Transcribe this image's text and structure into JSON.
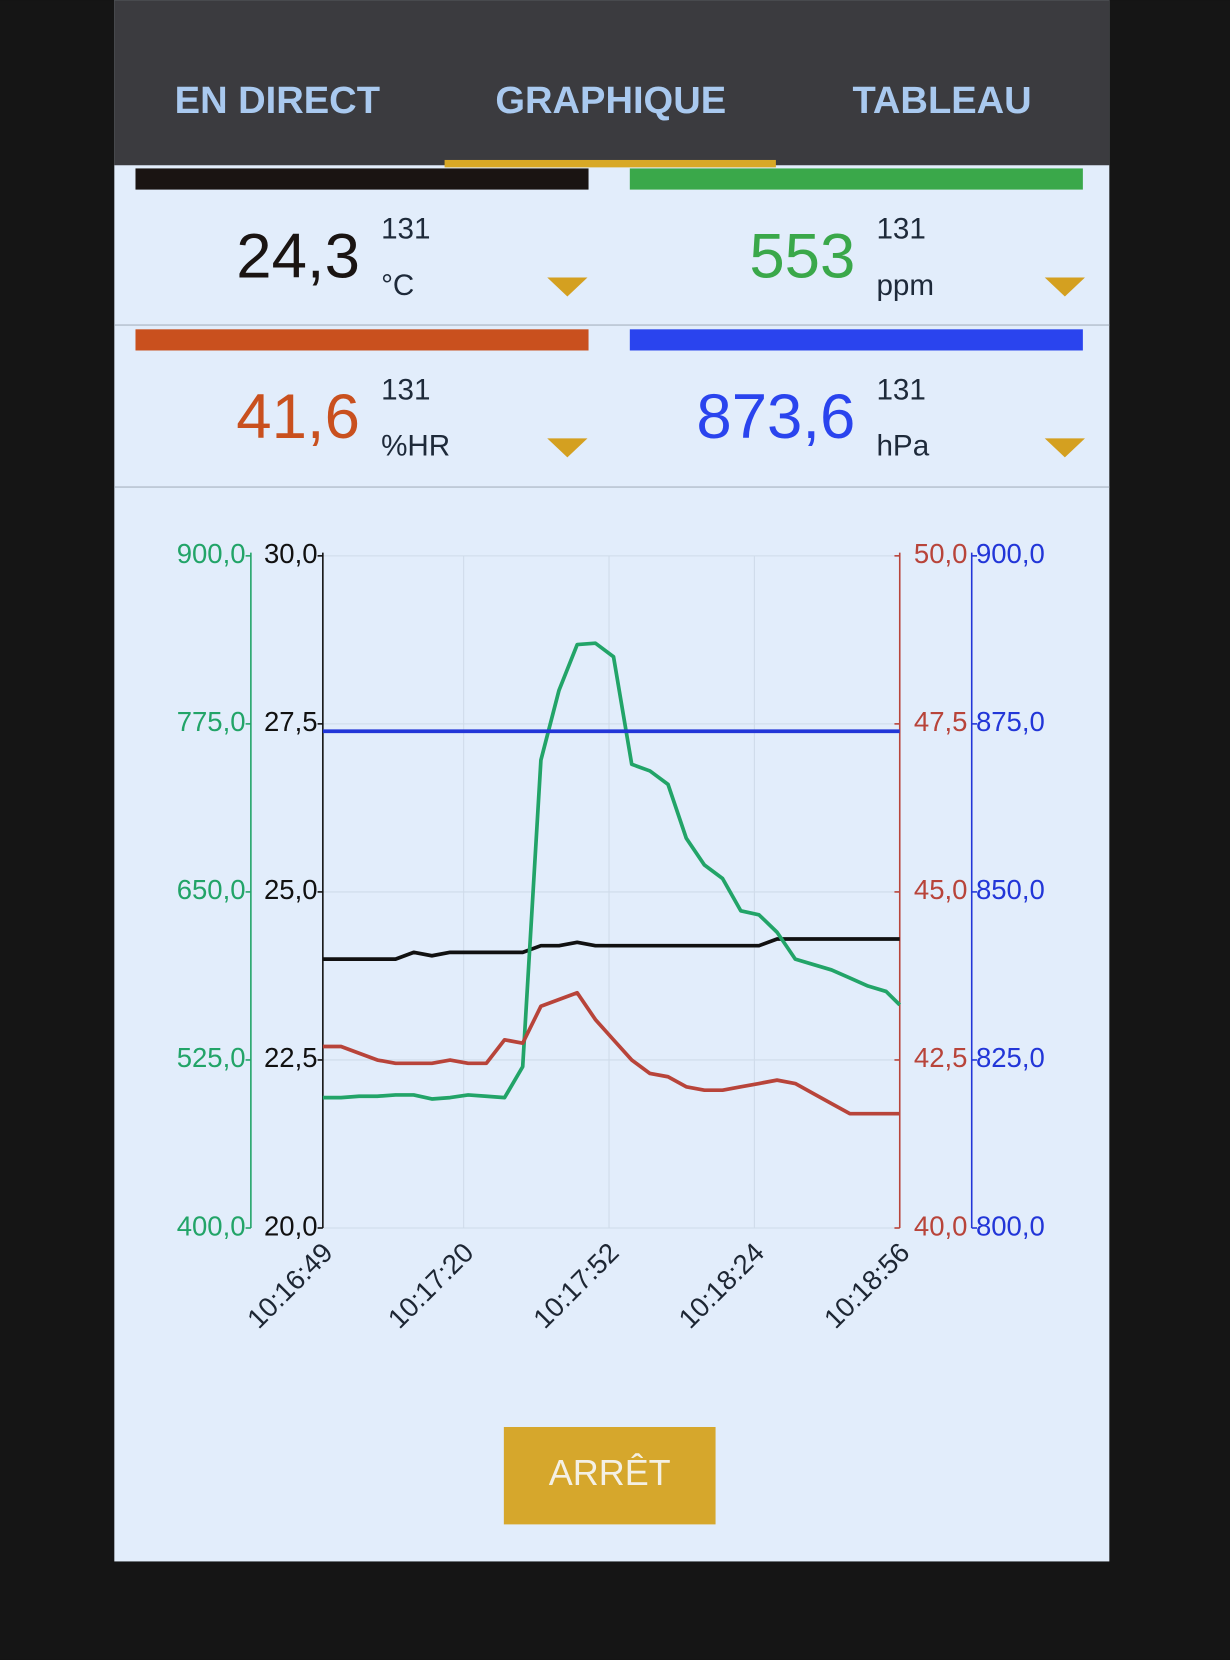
{
  "tabs": [
    "EN DIRECT",
    "GRAPHIQUE",
    "TABLEAU"
  ],
  "cards": [
    {
      "color": "#1a1412",
      "value": "24,3",
      "count": "131",
      "unit": "°C"
    },
    {
      "color": "#3aa84a",
      "value": "553",
      "count": "131",
      "unit": "ppm"
    },
    {
      "color": "#c9501e",
      "value": "41,6",
      "count": "131",
      "unit": "%HR"
    },
    {
      "color": "#2a44ee",
      "value": "873,6",
      "count": "131",
      "unit": "hPa"
    }
  ],
  "chart_data": {
    "type": "line",
    "x": [
      "10:16:49",
      "10:16:53",
      "10:16:57",
      "10:17:01",
      "10:17:05",
      "10:17:09",
      "10:17:13",
      "10:17:17",
      "10:17:21",
      "10:17:25",
      "10:17:29",
      "10:17:33",
      "10:17:37",
      "10:17:41",
      "10:17:45",
      "10:17:49",
      "10:17:53",
      "10:17:57",
      "10:18:01",
      "10:18:05",
      "10:18:09",
      "10:18:13",
      "10:18:17",
      "10:18:21",
      "10:18:25",
      "10:18:29",
      "10:18:33",
      "10:18:37",
      "10:18:41",
      "10:18:45",
      "10:18:49",
      "10:18:53",
      "10:18:56"
    ],
    "xlim": [
      "10:16:49",
      "10:18:56"
    ],
    "xticks": [
      "10:16:49",
      "10:17:20",
      "10:17:52",
      "10:18:24",
      "10:18:56"
    ],
    "grid": true,
    "series": [
      {
        "color": "#111111",
        "values": [
          24.0,
          24.0,
          24.0,
          24.0,
          24.0,
          24.1,
          24.05,
          24.1,
          24.1,
          24.1,
          24.1,
          24.1,
          24.2,
          24.2,
          24.25,
          24.2,
          24.2,
          24.2,
          24.2,
          24.2,
          24.2,
          24.2,
          24.2,
          24.2,
          24.2,
          24.3,
          24.3,
          24.3,
          24.3,
          24.3,
          24.3,
          24.3,
          24.3
        ],
        "ylim": [
          20,
          30
        ],
        "yticks": [
          {
            "value": 20,
            "label": "20,0"
          },
          {
            "value": 22.5,
            "label": "22,5"
          },
          {
            "value": 25,
            "label": "25,0"
          },
          {
            "value": 27.5,
            "label": "27,5"
          },
          {
            "value": 30,
            "label": "30,0"
          }
        ]
      },
      {
        "color": "#22a468",
        "values": [
          497,
          497,
          498,
          498,
          499,
          499,
          496,
          497,
          499,
          498,
          497,
          520,
          748,
          800,
          834,
          835,
          825,
          745,
          740,
          730,
          690,
          670,
          660,
          636,
          633,
          620,
          600,
          596,
          592,
          586,
          580,
          576,
          566
        ],
        "ylim": [
          400,
          900
        ],
        "yticks": [
          {
            "value": 400,
            "label": "400,0"
          },
          {
            "value": 525,
            "label": "525,0"
          },
          {
            "value": 650,
            "label": "650,0"
          },
          {
            "value": 775,
            "label": "775,0"
          },
          {
            "value": 900,
            "label": "900,0"
          }
        ]
      },
      {
        "color": "#b8443a",
        "values": [
          42.7,
          42.7,
          42.6,
          42.5,
          42.45,
          42.45,
          42.45,
          42.5,
          42.45,
          42.45,
          42.8,
          42.75,
          43.3,
          43.4,
          43.5,
          43.1,
          42.8,
          42.5,
          42.3,
          42.25,
          42.1,
          42.05,
          42.05,
          42.1,
          42.15,
          42.2,
          42.15,
          42.0,
          41.85,
          41.7,
          41.7,
          41.7,
          41.7
        ],
        "ylim": [
          40,
          50
        ],
        "yticks": [
          {
            "value": 40,
            "label": "40,0"
          },
          {
            "value": 42.5,
            "label": "42,5"
          },
          {
            "value": 45,
            "label": "45,0"
          },
          {
            "value": 47.5,
            "label": "47,5"
          },
          {
            "value": 50,
            "label": "50,0"
          }
        ]
      },
      {
        "color": "#2236d8",
        "values": [
          873.9,
          873.9,
          873.9,
          873.9,
          873.9,
          873.9,
          873.9,
          873.9,
          873.9,
          873.9,
          873.9,
          873.9,
          873.9,
          873.9,
          873.9,
          873.9,
          873.9,
          873.9,
          873.9,
          873.9,
          873.9,
          873.9,
          873.9,
          873.9,
          873.9,
          873.9,
          873.9,
          873.9,
          873.9,
          873.9,
          873.9,
          873.9,
          873.9
        ],
        "ylim": [
          800,
          900
        ],
        "yticks": [
          {
            "value": 800,
            "label": "800,0"
          },
          {
            "value": 825,
            "label": "825,0"
          },
          {
            "value": 850,
            "label": "850,0"
          },
          {
            "value": 875,
            "label": "875,0"
          },
          {
            "value": 900,
            "label": "900,0"
          }
        ]
      }
    ]
  },
  "button": "ARRÊT"
}
